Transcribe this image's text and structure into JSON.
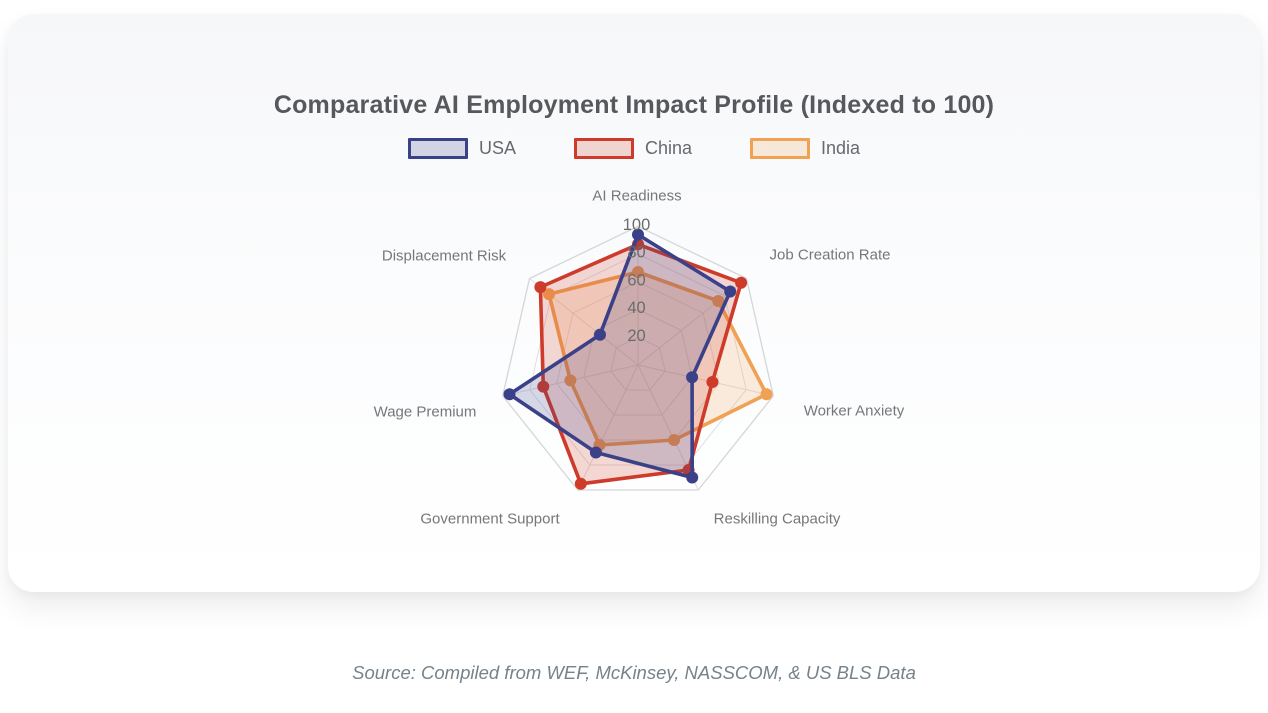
{
  "page": {
    "source_note": "Source: Compiled from WEF, McKinsey, NASSCOM, & US BLS Data"
  },
  "chart_data": {
    "type": "radar",
    "title": "Comparative AI Employment Impact Profile (Indexed to 100)",
    "categories": [
      "AI Readiness",
      "Job Creation Rate",
      "Worker Anxiety",
      "Reskilling Capacity",
      "Government Support",
      "Wage Premium",
      "Displacement Risk"
    ],
    "series": [
      {
        "name": "USA",
        "color": "#3b4188",
        "fill": "rgba(59,65,136,0.20)",
        "values": [
          94,
          85,
          40,
          90,
          70,
          95,
          35
        ]
      },
      {
        "name": "China",
        "color": "#cf3b2a",
        "fill": "rgba(207,59,42,0.20)",
        "values": [
          87,
          95,
          55,
          84,
          95,
          70,
          90
        ]
      },
      {
        "name": "India",
        "color": "#f0a153",
        "fill": "rgba(240,161,83,0.20)",
        "values": [
          67,
          74,
          95,
          60,
          64,
          50,
          82
        ]
      }
    ],
    "rmin": 0,
    "rmax": 100,
    "ticks": [
      20,
      40,
      60,
      80,
      100
    ],
    "grid": true,
    "legend_position": "top",
    "grid_color": "#dfdfe2",
    "outer_ring_color": "#d5d6d9",
    "tick_label_color": "#6c6c6c",
    "axis_label_color": "#757779"
  }
}
